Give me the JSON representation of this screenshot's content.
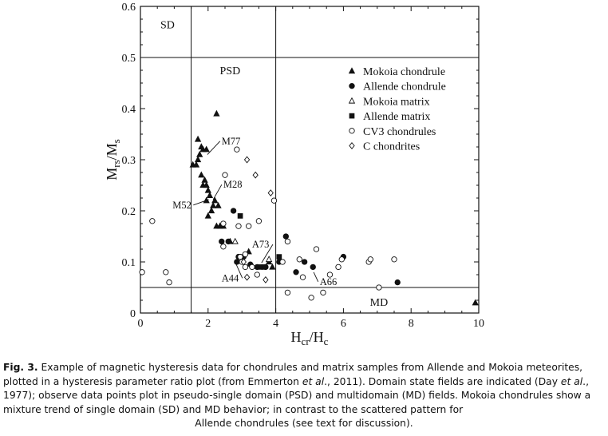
{
  "chart_data": {
    "type": "scatter",
    "xlabel": "Hcr/Hc",
    "ylabel": "Mrs/Ms",
    "xlim": [
      0,
      10
    ],
    "ylim": [
      0,
      0.6
    ],
    "xticks": [
      "0",
      "2",
      "4",
      "6",
      "8",
      "10"
    ],
    "yticks": [
      "0",
      "0.1",
      "0.2",
      "0.3",
      "0.4",
      "0.5",
      "0.6"
    ],
    "grid": false,
    "legend_position": "top-right",
    "domain_lines": {
      "x": [
        1.5,
        4.0
      ],
      "y": [
        0.5,
        0.05
      ]
    },
    "region_labels": [
      {
        "text": "SD",
        "x": 0.8,
        "y": 0.565
      },
      {
        "text": "PSD",
        "x": 2.65,
        "y": 0.475
      },
      {
        "text": "MD",
        "x": 7.05,
        "y": 0.022
      }
    ],
    "annotations": [
      {
        "text": "M77",
        "x": 2.4,
        "y": 0.33,
        "px": 1.98,
        "py": 0.31
      },
      {
        "text": "M28",
        "x": 2.45,
        "y": 0.245,
        "px": 2.15,
        "py": 0.222
      },
      {
        "text": "M52",
        "x": 0.95,
        "y": 0.205,
        "px": 2.02,
        "py": 0.222
      },
      {
        "text": "A73",
        "x": 3.3,
        "y": 0.128,
        "px": 3.58,
        "py": 0.098
      },
      {
        "text": "A44",
        "x": 2.4,
        "y": 0.062,
        "px": 2.82,
        "py": 0.097
      },
      {
        "text": "A66",
        "x": 5.3,
        "y": 0.055,
        "px": 5.12,
        "py": 0.08
      }
    ],
    "series": [
      {
        "name": "Mokoia chondrule",
        "marker": "triangle-filled",
        "points": [
          [
            1.65,
            0.29
          ],
          [
            1.55,
            0.29
          ],
          [
            1.7,
            0.3
          ],
          [
            1.75,
            0.31
          ],
          [
            1.85,
            0.32
          ],
          [
            1.8,
            0.325
          ],
          [
            1.7,
            0.34
          ],
          [
            1.95,
            0.32
          ],
          [
            2.25,
            0.39
          ],
          [
            1.8,
            0.27
          ],
          [
            1.9,
            0.26
          ],
          [
            1.85,
            0.25
          ],
          [
            1.95,
            0.25
          ],
          [
            2.0,
            0.24
          ],
          [
            2.05,
            0.23
          ],
          [
            2.2,
            0.22
          ],
          [
            2.15,
            0.21
          ],
          [
            2.3,
            0.21
          ],
          [
            1.95,
            0.22
          ],
          [
            2.0,
            0.19
          ],
          [
            2.1,
            0.2
          ],
          [
            2.25,
            0.17
          ],
          [
            2.35,
            0.17
          ],
          [
            2.45,
            0.17
          ],
          [
            2.65,
            0.14
          ],
          [
            3.2,
            0.12
          ],
          [
            3.8,
            0.1
          ],
          [
            3.9,
            0.09
          ],
          [
            9.9,
            0.02
          ]
        ]
      },
      {
        "name": "Allende chondrule",
        "marker": "circle-filled",
        "points": [
          [
            2.75,
            0.2
          ],
          [
            2.4,
            0.14
          ],
          [
            2.6,
            0.14
          ],
          [
            2.9,
            0.11
          ],
          [
            3.05,
            0.11
          ],
          [
            3.25,
            0.095
          ],
          [
            3.45,
            0.09
          ],
          [
            3.7,
            0.09
          ],
          [
            4.3,
            0.15
          ],
          [
            4.1,
            0.1
          ],
          [
            4.6,
            0.08
          ],
          [
            4.85,
            0.1
          ],
          [
            5.1,
            0.09
          ],
          [
            6.0,
            0.11
          ],
          [
            7.6,
            0.06
          ],
          [
            2.85,
            0.1
          ]
        ]
      },
      {
        "name": "Mokoia matrix",
        "marker": "triangle-open",
        "points": [
          [
            2.8,
            0.14
          ],
          [
            3.8,
            0.105
          ]
        ]
      },
      {
        "name": "Allende matrix",
        "marker": "square-filled",
        "points": [
          [
            2.95,
            0.19
          ],
          [
            3.55,
            0.09
          ],
          [
            3.65,
            0.09
          ],
          [
            4.1,
            0.11
          ]
        ]
      },
      {
        "name": "CV3 chondrules",
        "marker": "circle-open",
        "points": [
          [
            0.05,
            0.08
          ],
          [
            0.35,
            0.18
          ],
          [
            0.75,
            0.08
          ],
          [
            0.85,
            0.06
          ],
          [
            2.5,
            0.27
          ],
          [
            2.85,
            0.32
          ],
          [
            2.9,
            0.17
          ],
          [
            2.95,
            0.11
          ],
          [
            3.0,
            0.1
          ],
          [
            3.1,
            0.09
          ],
          [
            3.1,
            0.115
          ],
          [
            3.2,
            0.17
          ],
          [
            3.3,
            0.09
          ],
          [
            3.5,
            0.18
          ],
          [
            3.45,
            0.075
          ],
          [
            3.95,
            0.22
          ],
          [
            4.2,
            0.1
          ],
          [
            4.35,
            0.14
          ],
          [
            4.35,
            0.04
          ],
          [
            4.7,
            0.105
          ],
          [
            4.8,
            0.07
          ],
          [
            5.05,
            0.03
          ],
          [
            5.2,
            0.125
          ],
          [
            5.4,
            0.04
          ],
          [
            5.6,
            0.075
          ],
          [
            5.85,
            0.09
          ],
          [
            5.95,
            0.105
          ],
          [
            6.75,
            0.1
          ],
          [
            6.8,
            0.105
          ],
          [
            7.05,
            0.05
          ],
          [
            7.5,
            0.105
          ],
          [
            2.45,
            0.13
          ],
          [
            2.45,
            0.175
          ]
        ]
      },
      {
        "name": "C chondrites",
        "marker": "diamond-open",
        "points": [
          [
            3.15,
            0.3
          ],
          [
            3.4,
            0.27
          ],
          [
            3.85,
            0.235
          ],
          [
            3.15,
            0.07
          ],
          [
            3.7,
            0.065
          ],
          [
            3.05,
            0.1
          ]
        ]
      }
    ]
  },
  "caption": {
    "label": "Fig. 3.",
    "p1": " Example of magnetic hysteresis data for chondrules and matrix samples from Allende and Mokoia meteorites, plotted in a hysteresis parameter ratio plot (from Emmerton ",
    "etal1": "et al",
    "p2": "., 2011). Domain state fields are indicated (Day ",
    "etal2": "et al",
    "p3": "., 1977); observe data points plot in pseudo-single domain (PSD) and multidomain (MD) fields. Mokoia chondrules show a mixture trend of single domain (SD) and MD behavior; in contrast to the scattered pattern for",
    "p4": "Allende chondrules (see text for discussion)."
  },
  "colors": {
    "ink": "#111111",
    "background": "#ffffff"
  }
}
